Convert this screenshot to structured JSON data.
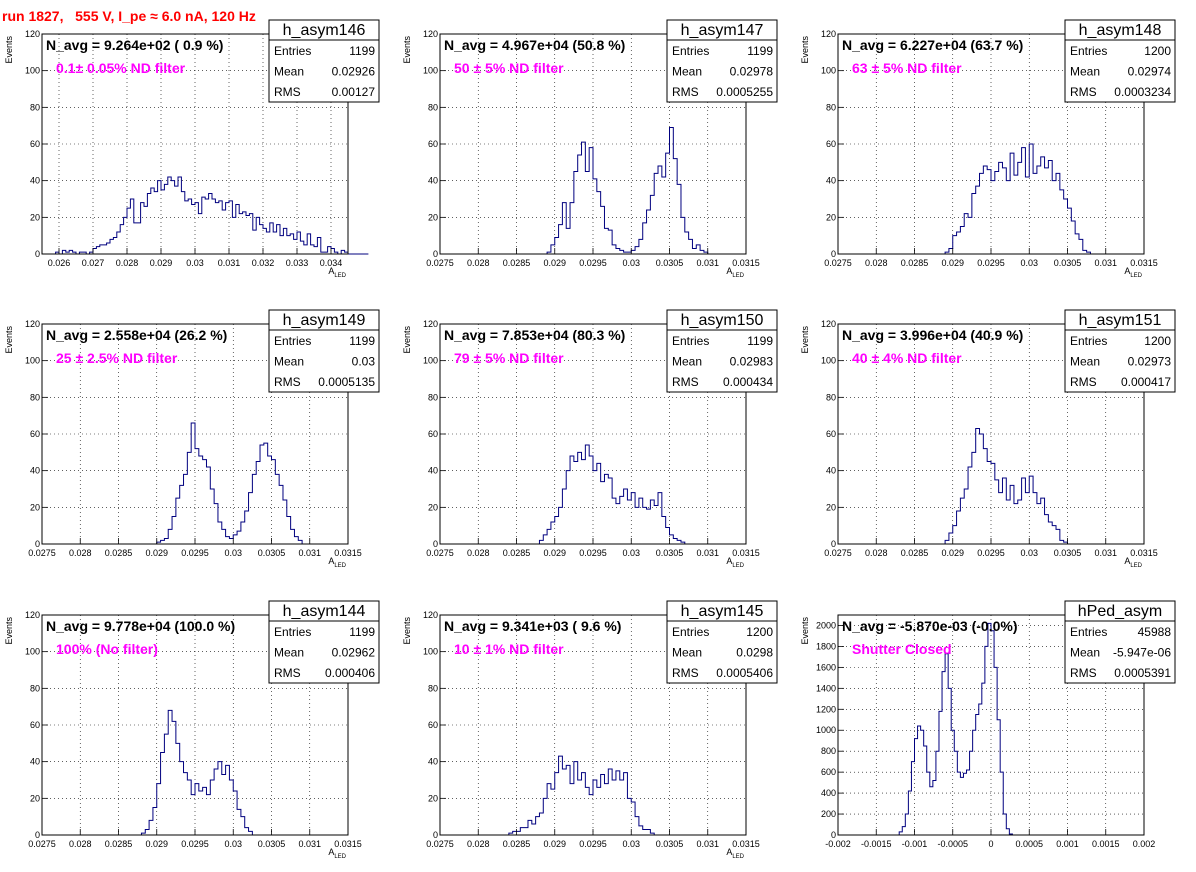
{
  "page_title": "run 1827,   555 V, I_pe ≈ 6.0 nA, 120 Hz",
  "chart_data": [
    {
      "type": "bar",
      "hist_name": "h_asym146",
      "n_avg": "N_avg = 9.264e+02 ( 0.9 %)",
      "filter_label": "0.1± 0.05% ND filter",
      "stats": {
        "entries_label": "Entries",
        "entries": "1199",
        "mean_label": "Mean",
        "mean": "0.02926",
        "rms_label": "RMS",
        "rms": "0.00127"
      },
      "xlabel": "A",
      "xlabel_sub": "LED",
      "ylabel": "Events",
      "xlim": [
        0.0255,
        0.0345
      ],
      "ylim": [
        0,
        120
      ],
      "xticks": [
        0.026,
        0.027,
        0.028,
        0.029,
        0.03,
        0.031,
        0.032,
        0.033,
        0.034
      ],
      "xtick_labels": [
        "0.026",
        "0.027",
        "0.028",
        "0.029",
        "0.03",
        "0.031",
        "0.032",
        "0.033",
        "0.034"
      ],
      "yticks": [
        0,
        20,
        40,
        60,
        80,
        100,
        120
      ],
      "ytick_labels": [
        "0",
        "20",
        "40",
        "60",
        "80",
        "100",
        "120"
      ],
      "bin_start": 0.0259,
      "bin_width": 0.0001,
      "values": [
        1,
        0,
        2,
        1,
        2,
        1,
        0,
        1,
        1,
        0,
        1,
        3,
        4,
        5,
        5,
        6,
        8,
        9,
        12,
        16,
        20,
        25,
        30,
        17,
        17,
        28,
        26,
        33,
        36,
        34,
        40,
        35,
        38,
        42,
        40,
        37,
        42,
        34,
        29,
        30,
        27,
        28,
        22,
        31,
        30,
        33,
        30,
        28,
        29,
        24,
        28,
        29,
        20,
        27,
        22,
        23,
        21,
        22,
        13,
        20,
        16,
        14,
        12,
        17,
        12,
        16,
        10,
        14,
        10,
        11,
        8,
        12,
        7,
        5,
        11,
        5,
        4,
        9,
        1,
        1,
        4,
        3,
        1,
        0,
        2,
        1,
        0,
        0,
        0,
        0,
        0,
        0
      ]
    },
    {
      "type": "bar",
      "hist_name": "h_asym147",
      "n_avg": "N_avg = 4.967e+04 (50.8 %)",
      "filter_label": "50 ± 5% ND filter",
      "stats": {
        "entries_label": "Entries",
        "entries": "1199",
        "mean_label": "Mean",
        "mean": "0.02978",
        "rms_label": "RMS",
        "rms": "0.0005255"
      },
      "xlabel": "A",
      "xlabel_sub": "LED",
      "ylabel": "Events",
      "xlim": [
        0.0275,
        0.0315
      ],
      "ylim": [
        0,
        120
      ],
      "xticks": [
        0.0275,
        0.028,
        0.0285,
        0.029,
        0.0295,
        0.03,
        0.0305,
        0.031,
        0.0315
      ],
      "xtick_labels": [
        "0.0275",
        "0.028",
        "0.0285",
        "0.029",
        "0.0295",
        "0.03",
        "0.0305",
        "0.031",
        "0.0315"
      ],
      "yticks": [
        0,
        20,
        40,
        60,
        80,
        100,
        120
      ],
      "ytick_labels": [
        "0",
        "20",
        "40",
        "60",
        "80",
        "100",
        "120"
      ],
      "bin_start": 0.0289,
      "bin_width": 5e-05,
      "values": [
        1,
        5,
        9,
        16,
        28,
        14,
        28,
        45,
        54,
        61,
        45,
        58,
        41,
        34,
        26,
        14,
        13,
        5,
        3,
        2,
        1,
        1,
        2,
        4,
        8,
        17,
        24,
        32,
        44,
        48,
        42,
        55,
        69,
        52,
        38,
        20,
        12,
        8,
        3,
        5,
        2,
        1,
        0
      ]
    },
    {
      "type": "bar",
      "hist_name": "h_asym148",
      "n_avg": "N_avg = 6.227e+04 (63.7 %)",
      "filter_label": "63 ± 5% ND filter",
      "stats": {
        "entries_label": "Entries",
        "entries": "1200",
        "mean_label": "Mean",
        "mean": "0.02974",
        "rms_label": "RMS",
        "rms": "0.0003234"
      },
      "xlabel": "A",
      "xlabel_sub": "LED",
      "ylabel": "Events",
      "xlim": [
        0.0275,
        0.0315
      ],
      "ylim": [
        0,
        120
      ],
      "xticks": [
        0.0275,
        0.028,
        0.0285,
        0.029,
        0.0295,
        0.03,
        0.0305,
        0.031,
        0.0315
      ],
      "xtick_labels": [
        "0.0275",
        "0.028",
        "0.0285",
        "0.029",
        "0.0295",
        "0.03",
        "0.0305",
        "0.031",
        "0.0315"
      ],
      "yticks": [
        0,
        20,
        40,
        60,
        80,
        100,
        120
      ],
      "ytick_labels": [
        "0",
        "20",
        "40",
        "60",
        "80",
        "100",
        "120"
      ],
      "bin_start": 0.0289,
      "bin_width": 5e-05,
      "values": [
        1,
        3,
        10,
        12,
        15,
        22,
        20,
        33,
        37,
        44,
        48,
        46,
        40,
        45,
        50,
        47,
        40,
        55,
        43,
        50,
        58,
        42,
        60,
        44,
        48,
        53,
        47,
        51,
        40,
        44,
        35,
        30,
        25,
        18,
        11,
        8,
        2,
        1,
        0,
        0,
        0
      ]
    },
    {
      "type": "bar",
      "hist_name": "h_asym149",
      "n_avg": "N_avg = 2.558e+04 (26.2 %)",
      "filter_label": "25 ± 2.5% ND filter",
      "stats": {
        "entries_label": "Entries",
        "entries": "1199",
        "mean_label": "Mean",
        "mean": "0.03",
        "rms_label": "RMS",
        "rms": "0.0005135"
      },
      "xlabel": "A",
      "xlabel_sub": "LED",
      "ylabel": "Events",
      "xlim": [
        0.0275,
        0.0315
      ],
      "ylim": [
        0,
        120
      ],
      "xticks": [
        0.0275,
        0.028,
        0.0285,
        0.029,
        0.0295,
        0.03,
        0.0305,
        0.031,
        0.0315
      ],
      "xtick_labels": [
        "0.0275",
        "0.028",
        "0.0285",
        "0.029",
        "0.0295",
        "0.03",
        "0.0305",
        "0.031",
        "0.0315"
      ],
      "yticks": [
        0,
        20,
        40,
        60,
        80,
        100,
        120
      ],
      "ytick_labels": [
        "0",
        "20",
        "40",
        "60",
        "80",
        "100",
        "120"
      ],
      "bin_start": 0.029,
      "bin_width": 5e-05,
      "values": [
        1,
        2,
        3,
        8,
        15,
        25,
        32,
        38,
        50,
        66,
        52,
        48,
        46,
        42,
        30,
        22,
        12,
        8,
        4,
        3,
        5,
        7,
        12,
        18,
        28,
        38,
        45,
        54,
        55,
        48,
        46,
        38,
        32,
        24,
        15,
        8,
        4,
        2,
        0
      ]
    },
    {
      "type": "bar",
      "hist_name": "h_asym150",
      "n_avg": "N_avg = 7.853e+04 (80.3 %)",
      "filter_label": "79 ± 5% ND filter",
      "stats": {
        "entries_label": "Entries",
        "entries": "1199",
        "mean_label": "Mean",
        "mean": "0.02983",
        "rms_label": "RMS",
        "rms": "0.000434"
      },
      "xlabel": "A",
      "xlabel_sub": "LED",
      "ylabel": "Events",
      "xlim": [
        0.0275,
        0.0315
      ],
      "ylim": [
        0,
        120
      ],
      "xticks": [
        0.0275,
        0.028,
        0.0285,
        0.029,
        0.0295,
        0.03,
        0.0305,
        0.031,
        0.0315
      ],
      "xtick_labels": [
        "0.0275",
        "0.028",
        "0.0285",
        "0.029",
        "0.0295",
        "0.03",
        "0.0305",
        "0.031",
        "0.0315"
      ],
      "yticks": [
        0,
        20,
        40,
        60,
        80,
        100,
        120
      ],
      "ytick_labels": [
        "0",
        "20",
        "40",
        "60",
        "80",
        "100",
        "120"
      ],
      "bin_start": 0.0288,
      "bin_width": 5e-05,
      "values": [
        2,
        5,
        8,
        12,
        15,
        20,
        30,
        40,
        48,
        45,
        50,
        46,
        54,
        48,
        40,
        44,
        34,
        38,
        36,
        25,
        22,
        26,
        30,
        24,
        28,
        20,
        25,
        20,
        19,
        24,
        21,
        28,
        15,
        9,
        5,
        3,
        2,
        1,
        0
      ]
    },
    {
      "type": "bar",
      "hist_name": "h_asym151",
      "n_avg": "N_avg = 3.996e+04 (40.9 %)",
      "filter_label": "40 ± 4% ND filter",
      "stats": {
        "entries_label": "Entries",
        "entries": "1200",
        "mean_label": "Mean",
        "mean": "0.02973",
        "rms_label": "RMS",
        "rms": "0.000417"
      },
      "xlabel": "A",
      "xlabel_sub": "LED",
      "ylabel": "Events",
      "xlim": [
        0.0275,
        0.0315
      ],
      "ylim": [
        0,
        120
      ],
      "xticks": [
        0.0275,
        0.028,
        0.0285,
        0.029,
        0.0295,
        0.03,
        0.0305,
        0.031,
        0.0315
      ],
      "xtick_labels": [
        "0.0275",
        "0.028",
        "0.0285",
        "0.029",
        "0.0295",
        "0.03",
        "0.0305",
        "0.031",
        "0.0315"
      ],
      "yticks": [
        0,
        20,
        40,
        60,
        80,
        100,
        120
      ],
      "ytick_labels": [
        "0",
        "20",
        "40",
        "60",
        "80",
        "100",
        "120"
      ],
      "bin_start": 0.0289,
      "bin_width": 5e-05,
      "values": [
        2,
        6,
        10,
        18,
        25,
        30,
        42,
        50,
        63,
        60,
        52,
        45,
        44,
        35,
        28,
        36,
        24,
        32,
        22,
        24,
        36,
        28,
        37,
        28,
        22,
        25,
        16,
        12,
        10,
        8,
        2,
        1,
        0
      ]
    },
    {
      "type": "bar",
      "hist_name": "h_asym144",
      "n_avg": "N_avg = 9.778e+04 (100.0 %)",
      "filter_label": "100% (No filter)",
      "stats": {
        "entries_label": "Entries",
        "entries": "1199",
        "mean_label": "Mean",
        "mean": "0.02962",
        "rms_label": "RMS",
        "rms": "0.000406"
      },
      "xlabel": "A",
      "xlabel_sub": "LED",
      "ylabel": "Events",
      "xlim": [
        0.0275,
        0.0315
      ],
      "ylim": [
        0,
        120
      ],
      "xticks": [
        0.0275,
        0.028,
        0.0285,
        0.029,
        0.0295,
        0.03,
        0.0305,
        0.031,
        0.0315
      ],
      "xtick_labels": [
        "0.0275",
        "0.028",
        "0.0285",
        "0.029",
        "0.0295",
        "0.03",
        "0.0305",
        "0.031",
        "0.0315"
      ],
      "yticks": [
        0,
        20,
        40,
        60,
        80,
        100,
        120
      ],
      "ytick_labels": [
        "0",
        "20",
        "40",
        "60",
        "80",
        "100",
        "120"
      ],
      "bin_start": 0.0288,
      "bin_width": 5e-05,
      "values": [
        1,
        3,
        8,
        15,
        28,
        45,
        55,
        68,
        62,
        50,
        40,
        34,
        30,
        22,
        28,
        24,
        26,
        22,
        30,
        36,
        40,
        33,
        38,
        30,
        24,
        14,
        10,
        4,
        2,
        0
      ]
    },
    {
      "type": "bar",
      "hist_name": "h_asym145",
      "n_avg": "N_avg = 9.341e+03 ( 9.6 %)",
      "filter_label": "10 ± 1% ND filter",
      "stats": {
        "entries_label": "Entries",
        "entries": "1200",
        "mean_label": "Mean",
        "mean": "0.0298",
        "rms_label": "RMS",
        "rms": "0.0005406"
      },
      "xlabel": "A",
      "xlabel_sub": "LED",
      "ylabel": "Events",
      "xlim": [
        0.0275,
        0.0315
      ],
      "ylim": [
        0,
        120
      ],
      "xticks": [
        0.0275,
        0.028,
        0.0285,
        0.029,
        0.0295,
        0.03,
        0.0305,
        0.031,
        0.0315
      ],
      "xtick_labels": [
        "0.0275",
        "0.028",
        "0.0285",
        "0.029",
        "0.0295",
        "0.03",
        "0.0305",
        "0.031",
        "0.0315"
      ],
      "yticks": [
        0,
        20,
        40,
        60,
        80,
        100,
        120
      ],
      "ytick_labels": [
        "0",
        "20",
        "40",
        "60",
        "80",
        "100",
        "120"
      ],
      "bin_start": 0.0284,
      "bin_width": 5e-05,
      "values": [
        1,
        2,
        2,
        4,
        4,
        8,
        6,
        10,
        12,
        20,
        28,
        25,
        34,
        43,
        36,
        38,
        28,
        40,
        30,
        34,
        26,
        22,
        30,
        26,
        33,
        28,
        36,
        30,
        35,
        30,
        34,
        20,
        18,
        10,
        5,
        3,
        3,
        1,
        0
      ]
    },
    {
      "type": "bar",
      "hist_name": "hPed_asym",
      "n_avg": "N_avg = -5.870e-03 (-0.0%)",
      "filter_label": "Shutter Closed",
      "stats": {
        "entries_label": "Entries",
        "entries": "45988",
        "mean_label": "Mean",
        "mean": "-5.947e-06",
        "rms_label": "RMS",
        "rms": "0.0005391"
      },
      "xlabel": "",
      "xlabel_sub": "",
      "ylabel": "Events",
      "xlim": [
        -0.002,
        0.002
      ],
      "ylim": [
        0,
        2100
      ],
      "xticks": [
        -0.002,
        -0.0015,
        -0.001,
        -0.0005,
        0,
        0.0005,
        0.001,
        0.0015,
        0.002
      ],
      "xtick_labels": [
        "-0.002",
        "-0.0015",
        "-0.001",
        "-0.0005",
        "0",
        "0.0005",
        "0.001",
        "0.0015",
        "0.002"
      ],
      "yticks": [
        0,
        200,
        400,
        600,
        800,
        1000,
        1200,
        1400,
        1600,
        1800,
        2000
      ],
      "ytick_labels": [
        "0",
        "200",
        "400",
        "600",
        "800",
        "1000",
        "1200",
        "1400",
        "1600",
        "1800",
        "2000"
      ],
      "bin_start": -0.0012,
      "bin_width": 4e-05,
      "values": [
        30,
        80,
        200,
        420,
        700,
        920,
        1040,
        1000,
        850,
        600,
        460,
        520,
        800,
        1180,
        1560,
        1730,
        1400,
        1000,
        800,
        600,
        550,
        590,
        620,
        800,
        1000,
        1150,
        1250,
        1450,
        1800,
        2020,
        1950,
        1600,
        1100,
        600,
        200,
        60,
        10,
        0
      ]
    }
  ]
}
